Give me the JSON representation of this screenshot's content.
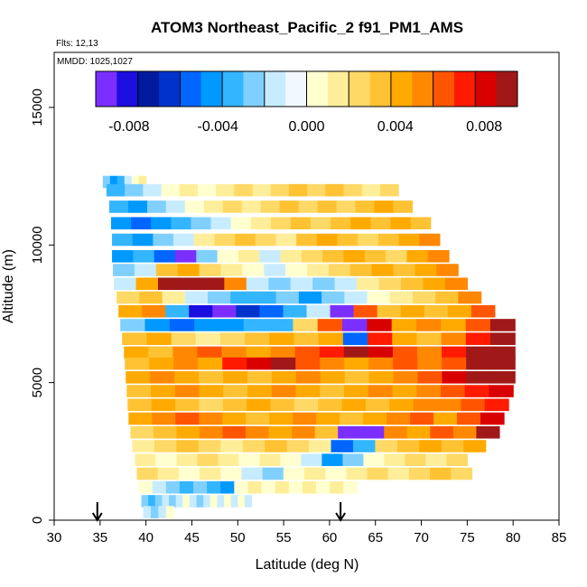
{
  "chart_data": {
    "type": "heatmap",
    "title": "ATOM3 Northeast_Pacific_2 f91_PM1_AMS",
    "subtitle_flights": "Flts: 12,13",
    "subtitle_dates": "MMDD: 1025,1027",
    "xlabel": "Latitude (deg N)",
    "ylabel": "Altitude (m)",
    "xlim": [
      30,
      85
    ],
    "ylim": [
      0,
      17000
    ],
    "x_ticks": [
      "30",
      "35",
      "40",
      "45",
      "50",
      "55",
      "60",
      "65",
      "70",
      "75",
      "80",
      "85"
    ],
    "y_ticks": [
      "0",
      "5000",
      "10000",
      "15000"
    ],
    "colorbar": {
      "range": [
        -0.0095,
        0.0095
      ],
      "tick_labels": [
        "-0.008",
        "-0.004",
        "0.000",
        "0.004",
        "0.008"
      ],
      "colors": [
        "#7b2fff",
        "#1a0fe0",
        "#001a9e",
        "#0033cc",
        "#0066ff",
        "#0099ff",
        "#33b5ff",
        "#80d0ff",
        "#c8ecff",
        "#f2f8ff",
        "#ffffd0",
        "#ffee99",
        "#ffd966",
        "#ffc233",
        "#ffaa00",
        "#ff8800",
        "#ff5500",
        "#ff1a00",
        "#d90000",
        "#a01818"
      ]
    },
    "flight_arrows_lat": [
      34.7,
      61.2
    ],
    "altitude_bands": [
      {
        "alt": 12300,
        "lat_start": 35.3,
        "lat_end": 40.0,
        "values": [
          -0.002,
          -0.004,
          -0.003,
          -0.001,
          0.0,
          0.001
        ]
      },
      {
        "alt": 12000,
        "lat_start": 35.7,
        "lat_end": 67.5,
        "values": [
          -0.003,
          -0.002,
          -0.001,
          0.0,
          0.001,
          0.0,
          0.001,
          0.002,
          0.001,
          0.002,
          0.003,
          0.002,
          0.003,
          0.002,
          0.001,
          0.002
        ]
      },
      {
        "alt": 11400,
        "lat_start": 36.0,
        "lat_end": 69.0,
        "values": [
          -0.003,
          -0.004,
          -0.002,
          -0.001,
          0.0,
          0.001,
          0.002,
          0.001,
          0.002,
          0.003,
          0.002,
          0.003,
          0.002,
          0.003,
          0.004,
          0.003
        ]
      },
      {
        "alt": 10800,
        "lat_start": 36.2,
        "lat_end": 71.0,
        "values": [
          -0.004,
          -0.005,
          -0.004,
          -0.003,
          -0.002,
          -0.001,
          0.0,
          0.001,
          0.002,
          0.003,
          0.002,
          0.003,
          0.004,
          0.003,
          0.004,
          0.003
        ]
      },
      {
        "alt": 10200,
        "lat_start": 36.3,
        "lat_end": 72.0,
        "values": [
          -0.003,
          -0.004,
          -0.002,
          -0.001,
          0.001,
          0.002,
          0.003,
          0.002,
          0.001,
          0.003,
          0.004,
          0.003,
          0.002,
          0.003,
          0.004,
          0.005
        ]
      },
      {
        "alt": 9600,
        "lat_start": 36.3,
        "lat_end": 73.0,
        "values": [
          -0.004,
          -0.003,
          -0.005,
          -0.009,
          -0.002,
          0.0,
          0.001,
          -0.001,
          0.001,
          0.002,
          0.003,
          0.004,
          0.003,
          0.002,
          0.004,
          0.005
        ]
      },
      {
        "alt": 9100,
        "lat_start": 36.4,
        "lat_end": 74.0,
        "values": [
          -0.002,
          -0.001,
          0.003,
          0.004,
          0.002,
          0.001,
          0.0,
          -0.001,
          0.0,
          0.001,
          0.002,
          0.003,
          0.004,
          0.003,
          0.004,
          0.005
        ]
      },
      {
        "alt": 8600,
        "lat_start": 36.5,
        "lat_end": 75.0,
        "values": [
          -0.001,
          0.004,
          0.009,
          0.01,
          0.009,
          0.005,
          -0.001,
          -0.002,
          -0.001,
          -0.002,
          -0.001,
          0.001,
          0.002,
          0.003,
          0.004,
          0.005
        ]
      },
      {
        "alt": 8100,
        "lat_start": 36.8,
        "lat_end": 76.5,
        "values": [
          0.002,
          0.003,
          0.001,
          -0.001,
          -0.002,
          -0.003,
          -0.003,
          -0.002,
          -0.004,
          -0.002,
          -0.001,
          0.0,
          0.001,
          0.002,
          0.003,
          0.005
        ]
      },
      {
        "alt": 7600,
        "lat_start": 37.0,
        "lat_end": 78.0,
        "values": [
          0.004,
          0.005,
          -0.003,
          -0.008,
          -0.009,
          -0.006,
          -0.005,
          -0.003,
          -0.001,
          -0.009,
          0.006,
          0.003,
          0.004,
          0.003,
          0.004,
          0.006
        ]
      },
      {
        "alt": 7100,
        "lat_start": 37.2,
        "lat_end": 80.2,
        "values": [
          -0.002,
          -0.004,
          -0.005,
          -0.004,
          -0.004,
          -0.003,
          -0.003,
          0.002,
          0.006,
          -0.009,
          0.008,
          0.004,
          0.005,
          0.004,
          0.006,
          0.009
        ]
      },
      {
        "alt": 6600,
        "lat_start": 37.4,
        "lat_end": 80.2,
        "values": [
          0.003,
          0.004,
          0.002,
          0.001,
          0.002,
          0.003,
          0.004,
          0.003,
          0.004,
          -0.005,
          0.007,
          0.004,
          0.003,
          0.005,
          0.007,
          0.009
        ]
      },
      {
        "alt": 6100,
        "lat_start": 37.6,
        "lat_end": 80.2,
        "values": [
          0.004,
          0.003,
          0.005,
          0.006,
          0.005,
          0.004,
          0.005,
          0.006,
          0.007,
          0.009,
          0.008,
          0.006,
          0.005,
          0.007,
          0.009,
          0.01
        ]
      },
      {
        "alt": 5700,
        "lat_start": 37.7,
        "lat_end": 80.2,
        "values": [
          0.003,
          0.004,
          0.005,
          0.004,
          0.007,
          0.008,
          0.009,
          0.006,
          0.005,
          0.004,
          0.005,
          0.006,
          0.005,
          0.006,
          0.009,
          0.01
        ]
      },
      {
        "alt": 5200,
        "lat_start": 37.8,
        "lat_end": 80.2,
        "values": [
          0.004,
          0.005,
          0.004,
          0.003,
          0.004,
          0.003,
          0.004,
          0.005,
          0.004,
          0.003,
          0.004,
          0.005,
          0.006,
          0.008,
          0.009,
          0.01
        ]
      },
      {
        "alt": 4700,
        "lat_start": 37.9,
        "lat_end": 80.0,
        "values": [
          0.003,
          0.004,
          0.005,
          0.004,
          0.003,
          0.004,
          0.005,
          0.004,
          0.003,
          0.004,
          0.005,
          0.004,
          0.005,
          0.006,
          0.007,
          0.008
        ]
      },
      {
        "alt": 4200,
        "lat_start": 38.0,
        "lat_end": 79.5,
        "values": [
          0.003,
          0.004,
          0.003,
          0.002,
          0.003,
          0.004,
          0.003,
          0.002,
          0.003,
          0.004,
          0.003,
          0.004,
          0.005,
          0.005,
          0.006,
          0.007
        ]
      },
      {
        "alt": 3700,
        "lat_start": 38.1,
        "lat_end": 79.0,
        "values": [
          0.004,
          0.005,
          0.006,
          0.005,
          0.004,
          0.003,
          0.004,
          0.005,
          0.004,
          0.003,
          0.004,
          0.005,
          0.006,
          0.004,
          0.006,
          0.008
        ]
      },
      {
        "alt": 3200,
        "lat_start": 38.3,
        "lat_end": 78.5,
        "values": [
          0.002,
          0.003,
          0.004,
          0.005,
          0.006,
          0.005,
          0.004,
          0.005,
          0.003,
          -0.009,
          -0.009,
          0.005,
          0.004,
          0.006,
          0.005,
          0.009
        ]
      },
      {
        "alt": 2700,
        "lat_start": 38.5,
        "lat_end": 77.0,
        "values": [
          0.001,
          0.002,
          0.003,
          0.002,
          0.001,
          0.002,
          0.003,
          0.002,
          0.001,
          -0.005,
          -0.003,
          0.002,
          0.003,
          0.004,
          0.003,
          0.004
        ]
      },
      {
        "alt": 2200,
        "lat_start": 38.8,
        "lat_end": 75.0,
        "values": [
          0.001,
          0.0,
          0.001,
          0.002,
          0.001,
          0.0,
          0.001,
          0.0,
          -0.001,
          -0.004,
          -0.002,
          0.0,
          0.001,
          0.002,
          0.001,
          0.002
        ]
      },
      {
        "alt": 1700,
        "lat_start": 39.0,
        "lat_end": 75.5,
        "values": [
          0.002,
          0.001,
          0.0,
          0.001,
          0.0,
          -0.001,
          -0.002,
          0.0,
          0.001,
          0.0,
          0.001,
          0.002,
          0.001,
          0.002,
          0.003,
          0.002
        ]
      },
      {
        "alt": 1200,
        "lat_start": 39.2,
        "lat_end": 63.0,
        "values": [
          0.0,
          -0.001,
          -0.002,
          -0.003,
          -0.002,
          -0.003,
          -0.004,
          0.0,
          0.001,
          0.0,
          0.001,
          0.0,
          0.001,
          0.0,
          0.001,
          0.0
        ]
      },
      {
        "alt": 700,
        "lat_start": 39.5,
        "lat_end": 51.5,
        "values": [
          -0.002,
          -0.003,
          -0.002,
          -0.001,
          -0.002,
          -0.001,
          0.0,
          -0.001,
          -0.002,
          -0.001,
          0.0,
          -0.001,
          0.0,
          -0.001,
          0.0,
          -0.001
        ]
      },
      {
        "alt": 300,
        "lat_start": 39.7,
        "lat_end": 43.0,
        "values": [
          -0.001,
          -0.002,
          -0.001,
          0.0
        ]
      }
    ]
  }
}
